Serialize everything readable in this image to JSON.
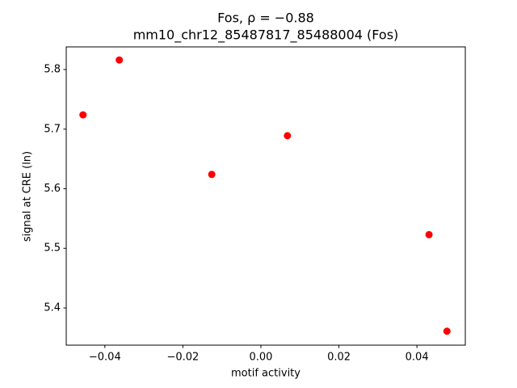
{
  "chart_data": {
    "type": "scatter",
    "title": "Fos, ρ = −0.88",
    "subtitle": "mm10_chr12_85487817_85488004 (Fos)",
    "x_label": "motif activity",
    "y_label": "signal at CRE (ln)",
    "color": "#ff0000",
    "x": [
      -0.0456,
      -0.0363,
      -0.0126,
      0.0068,
      0.0431,
      0.0477
    ],
    "values": [
      5.724,
      5.816,
      5.624,
      5.689,
      5.523,
      5.361
    ],
    "xlim": [
      -0.0499,
      0.0524
    ],
    "ylim": [
      5.3376,
      5.838
    ],
    "xticks": [
      {
        "value": -0.04,
        "label": "−0.04"
      },
      {
        "value": -0.02,
        "label": "−0.02"
      },
      {
        "value": 0,
        "label": "0.00"
      },
      {
        "value": 0.02,
        "label": "0.02"
      },
      {
        "value": 0.04,
        "label": "0.04"
      }
    ],
    "yticks": [
      5.4,
      5.5,
      5.6,
      5.7,
      5.8
    ]
  }
}
